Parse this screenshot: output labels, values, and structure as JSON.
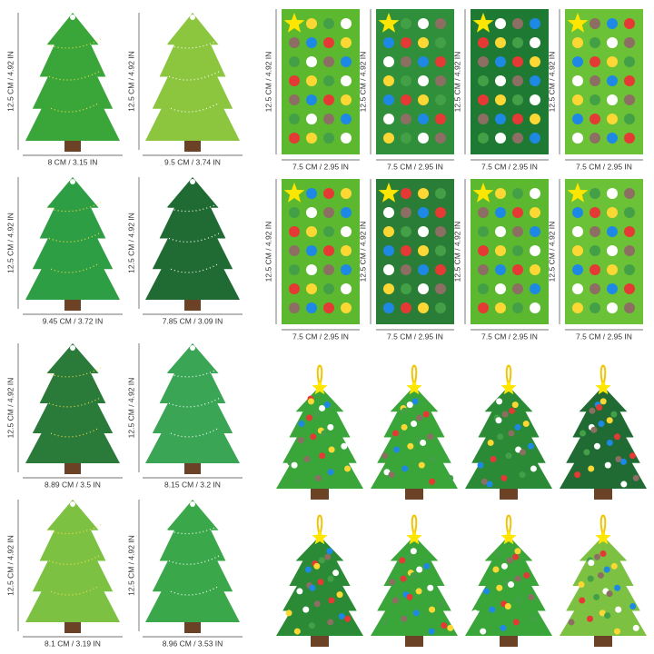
{
  "trees": [
    {
      "height": "12.5 CM / 4.92 IN",
      "width": "8 CM / 3.15 IN"
    },
    {
      "height": "12.5 CM / 4.92 IN",
      "width": "9.5 CM / 3.74 IN"
    },
    {
      "height": "12.5 CM / 4.92 IN",
      "width": "9.45 CM / 3.72 IN"
    },
    {
      "height": "12.5 CM / 4.92 IN",
      "width": "7.85 CM / 3.09 IN"
    },
    {
      "height": "12.5 CM / 4.92 IN",
      "width": "8.89 CM / 3.5 IN"
    },
    {
      "height": "12.5 CM / 4.92 IN",
      "width": "8.15 CM / 3.2 IN"
    },
    {
      "height": "12.5 CM / 4.92 IN",
      "width": "8.1 CM / 3.19 IN"
    },
    {
      "height": "12.5 CM / 4.92 IN",
      "width": "8.96 CM / 3.53 IN"
    }
  ],
  "sheets": [
    {
      "height": "12.5 CM / 4.92 IN",
      "width": "7.5 CM / 2.95 IN"
    },
    {
      "height": "12.5 CM / 4.92 IN",
      "width": "7.5 CM / 2.95 IN"
    },
    {
      "height": "12.5 CM / 4.92 IN",
      "width": "7.5 CM / 2.95 IN"
    },
    {
      "height": "12.5 CM / 4.92 IN",
      "width": "7.5 CM / 2.95 IN"
    },
    {
      "height": "12.5 CM / 4.92 IN",
      "width": "7.5 CM / 2.95 IN"
    },
    {
      "height": "12.5 CM / 4.92 IN",
      "width": "7.5 CM / 2.95 IN"
    },
    {
      "height": "12.5 CM / 4.92 IN",
      "width": "7.5 CM / 2.95 IN"
    },
    {
      "height": "12.5 CM / 4.92 IN",
      "width": "7.5 CM / 2.95 IN"
    }
  ]
}
